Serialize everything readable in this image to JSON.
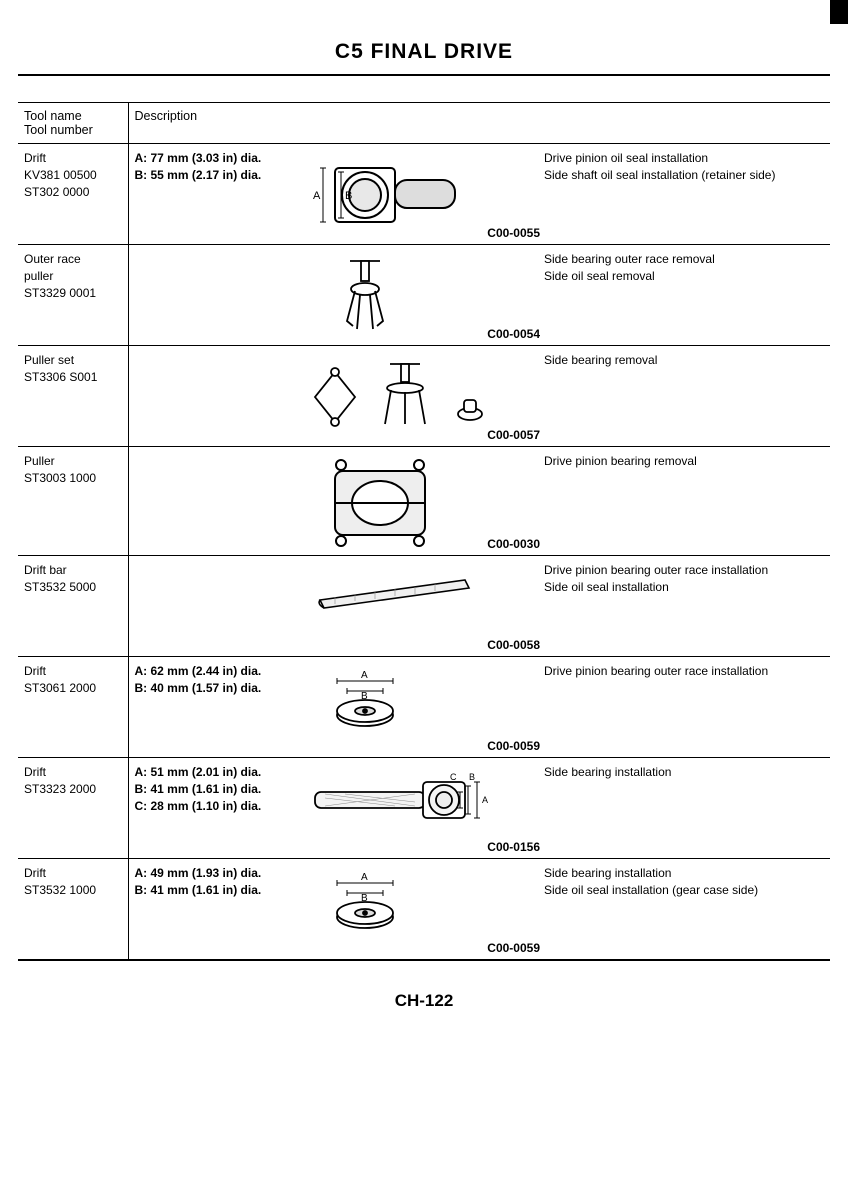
{
  "header": {
    "title": "C5 FINAL DRIVE"
  },
  "columns": {
    "name_header_l1": "Tool name",
    "name_header_l2": "Tool number",
    "desc_header": "Description"
  },
  "rows": [
    {
      "name_l1": "Drift",
      "name_l2": "KV381 00500",
      "name_l3": "ST302 0000",
      "spec_l1": "A: 77 mm (3.03 in) dia.",
      "spec_l2": "B: 55 mm (2.17 in) dia.",
      "usage_l1": "Drive pinion oil seal installation",
      "usage_l2": "Side shaft oil seal installation (retainer side)",
      "ref": "C00-0055",
      "illus": "drift1",
      "dim_labels": {
        "a": "A",
        "b": "B"
      }
    },
    {
      "name_l1": "Outer race",
      "name_l2": "puller",
      "name_l3": "ST3329 0001",
      "spec_l1": "",
      "spec_l2": "",
      "usage_l1": "Side bearing outer race removal",
      "usage_l2": "Side oil seal removal",
      "ref": "C00-0054",
      "illus": "outerpuller"
    },
    {
      "name_l1": "Puller set",
      "name_l2": "ST3306 S001",
      "name_l3": "",
      "spec_l1": "",
      "spec_l2": "",
      "usage_l1": "Side bearing removal",
      "usage_l2": "",
      "ref": "C00-0057",
      "illus": "pullerset"
    },
    {
      "name_l1": "Puller",
      "name_l2": "ST3003 1000",
      "name_l3": "",
      "spec_l1": "",
      "spec_l2": "",
      "usage_l1": "Drive pinion bearing removal",
      "usage_l2": "",
      "ref": "C00-0030",
      "illus": "puller"
    },
    {
      "name_l1": "Drift bar",
      "name_l2": "ST3532 5000",
      "name_l3": "",
      "spec_l1": "",
      "spec_l2": "",
      "usage_l1": "Drive pinion bearing outer race installation",
      "usage_l2": "Side oil seal installation",
      "ref": "C00-0058",
      "illus": "driftbar"
    },
    {
      "name_l1": "Drift",
      "name_l2": "ST3061 2000",
      "name_l3": "",
      "spec_l1": "A: 62 mm (2.44 in) dia.",
      "spec_l2": "B: 40 mm (1.57 in) dia.",
      "usage_l1": "Drive pinion bearing outer race installation",
      "usage_l2": "",
      "ref": "C00-0059",
      "illus": "drift2",
      "dim_labels": {
        "a": "A",
        "b": "B"
      }
    },
    {
      "name_l1": "Drift",
      "name_l2": "ST3323 2000",
      "name_l3": "",
      "spec_l1": "A: 51 mm (2.01 in) dia.",
      "spec_l2": "B: 41 mm (1.61 in) dia.",
      "spec_l3": "C: 28 mm (1.10 in) dia.",
      "usage_l1": "Side bearing installation",
      "usage_l2": "",
      "ref": "C00-0156",
      "illus": "drift3",
      "dim_labels": {
        "a": "A",
        "b": "B",
        "c": "C"
      }
    },
    {
      "name_l1": "Drift",
      "name_l2": "ST3532 1000",
      "name_l3": "",
      "spec_l1": "A: 49 mm (1.93 in) dia.",
      "spec_l2": "B: 41 mm (1.61 in) dia.",
      "usage_l1": "Side bearing installation",
      "usage_l2": "Side oil seal installation (gear case side)",
      "ref": "C00-0059",
      "illus": "drift2",
      "dim_labels": {
        "a": "A",
        "b": "B"
      }
    }
  ],
  "footer": {
    "page_number": "CH-122"
  },
  "style": {
    "page_bg": "#ffffff",
    "text_color": "#000000",
    "rule_color": "#000000",
    "font_family": "Arial, Helvetica, sans-serif",
    "title_fontsize": 21,
    "body_fontsize": 12.5,
    "col_name_width": 110,
    "desc_spec_width": 170,
    "desc_usage_width": 280
  }
}
